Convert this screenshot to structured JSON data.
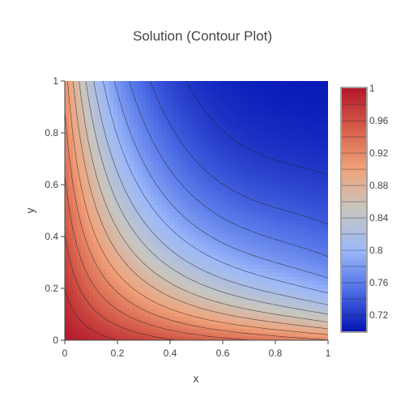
{
  "chart_data": {
    "type": "contour",
    "title": "Solution (Contour Plot)",
    "xlabel": "x",
    "ylabel": "y",
    "xlim": [
      0,
      1
    ],
    "ylim": [
      0,
      1
    ],
    "x_ticks": [
      "0",
      "0.2",
      "0.4",
      "0.6",
      "0.8",
      "1"
    ],
    "y_ticks": [
      "0",
      "0.2",
      "0.4",
      "0.6",
      "0.8",
      "1"
    ],
    "x_tick_values": [
      0,
      0.2,
      0.4,
      0.6,
      0.8,
      1
    ],
    "y_tick_values": [
      0,
      0.2,
      0.4,
      0.6,
      0.8,
      1
    ],
    "z_range": [
      0.7,
      1.0
    ],
    "colorbar": {
      "ticks": [
        "1",
        "0.96",
        "0.92",
        "0.88",
        "0.84",
        "0.8",
        "0.76",
        "0.72"
      ],
      "tick_values": [
        1,
        0.96,
        0.92,
        0.88,
        0.84,
        0.8,
        0.76,
        0.72
      ],
      "contour_levels": [
        0.7,
        0.72,
        0.74,
        0.76,
        0.78,
        0.8,
        0.82,
        0.84,
        0.86,
        0.88,
        0.9,
        0.92,
        0.94,
        0.96,
        0.98,
        1.0
      ]
    },
    "colorscale": [
      "#0414b4",
      "#4f6fe6",
      "#9bb8fa",
      "#c7c6c0",
      "#f0a27a",
      "#d6604b",
      "#b2182b"
    ],
    "grid": false,
    "legend": "colorbar-right"
  }
}
